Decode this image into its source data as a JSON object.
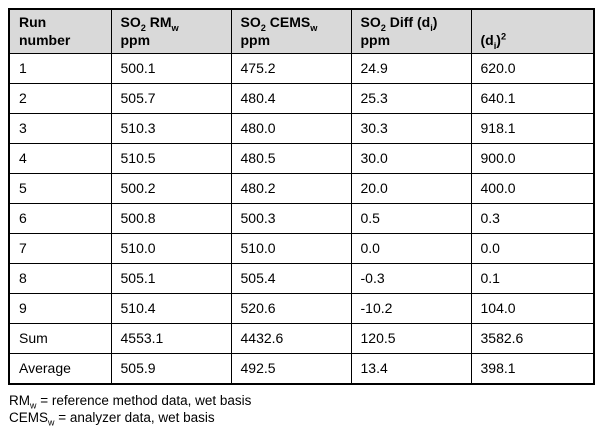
{
  "page": {
    "background": "#ffffff"
  },
  "table": {
    "header_bg": "#d9d9d9",
    "border_color": "#000000",
    "headers": [
      {
        "id": "run-number",
        "rich": "Run\nnumber"
      },
      {
        "id": "so2-rm-ppm",
        "rich": "SO~2~ RM~w~\nppm"
      },
      {
        "id": "so2-cems-ppm",
        "rich": "SO~2~ CEMS~w~\nppm"
      },
      {
        "id": "so2-diff-ppm",
        "rich": "SO~2~ Diff (d~i~)\nppm"
      },
      {
        "id": "di-squared",
        "rich": "(d~i~)^2^"
      }
    ],
    "rows": [
      {
        "run": "1",
        "rm": "500.1",
        "cems": "475.2",
        "diff": "24.9",
        "dsq": "620.0"
      },
      {
        "run": "2",
        "rm": "505.7",
        "cems": "480.4",
        "diff": "25.3",
        "dsq": "640.1"
      },
      {
        "run": "3",
        "rm": "510.3",
        "cems": "480.0",
        "diff": "30.3",
        "dsq": "918.1"
      },
      {
        "run": "4",
        "rm": "510.5",
        "cems": "480.5",
        "diff": "30.0",
        "dsq": "900.0"
      },
      {
        "run": "5",
        "rm": "500.2",
        "cems": "480.2",
        "diff": "20.0",
        "dsq": "400.0"
      },
      {
        "run": "6",
        "rm": "500.8",
        "cems": "500.3",
        "diff": "0.5",
        "dsq": "0.3"
      },
      {
        "run": "7",
        "rm": "510.0",
        "cems": "510.0",
        "diff": "0.0",
        "dsq": "0.0"
      },
      {
        "run": "8",
        "rm": "505.1",
        "cems": "505.4",
        "diff": "-0.3",
        "dsq": "0.1"
      },
      {
        "run": "9",
        "rm": "510.4",
        "cems": "520.6",
        "diff": "-10.2",
        "dsq": "104.0"
      },
      {
        "run": "Sum",
        "rm": "4553.1",
        "cems": "4432.6",
        "diff": "120.5",
        "dsq": "3582.6"
      },
      {
        "run": "Average",
        "rm": "505.9",
        "cems": "492.5",
        "diff": "13.4",
        "dsq": "398.1"
      }
    ]
  },
  "footnotes": [
    "RM~w~ = reference method data, wet basis",
    "CEMS~w~ = analyzer data, wet basis"
  ]
}
